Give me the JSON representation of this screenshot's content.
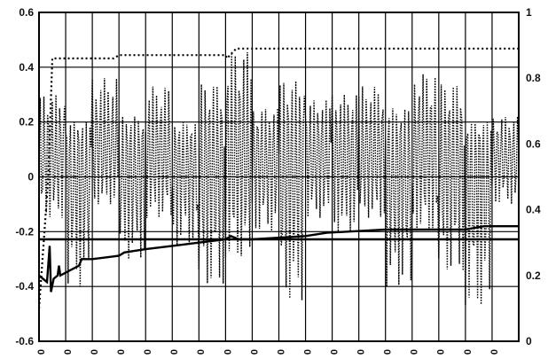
{
  "chart_data": {
    "type": "line",
    "title": "",
    "xlabel": "",
    "ylabel": "",
    "y2label": "",
    "grid": "on",
    "legend": "none",
    "ylim": [
      -0.6,
      0.6
    ],
    "y2lim": [
      0,
      1
    ],
    "y_ticks": [
      "0.6",
      "0.4",
      "0.2",
      "0",
      "-0.2",
      "-0.4",
      "-0.6"
    ],
    "y2_ticks": [
      "1",
      "0.8",
      "0.6",
      "0.4",
      "0.2",
      "0"
    ],
    "x_tick_labels": [
      "0",
      "0",
      "0",
      "0",
      "0",
      "0",
      "0",
      "0",
      "0",
      "0",
      "0",
      "0",
      "0",
      "0",
      "0",
      "0",
      "0",
      "0"
    ],
    "series": [
      {
        "axis": "left",
        "style": "dotted",
        "oscillation_center": 0.08,
        "cycles": [
          {
            "min": -0.15,
            "max": 0.3
          },
          {
            "min": -0.4,
            "max": 0.2
          },
          {
            "min": -0.1,
            "max": 0.36
          },
          {
            "min": -0.3,
            "max": 0.22
          },
          {
            "min": -0.15,
            "max": 0.33
          },
          {
            "min": -0.25,
            "max": 0.2
          },
          {
            "min": -0.4,
            "max": 0.34
          },
          {
            "min": -0.3,
            "max": 0.46
          },
          {
            "min": -0.2,
            "max": 0.25
          },
          {
            "min": -0.45,
            "max": 0.35
          },
          {
            "min": -0.15,
            "max": 0.28
          },
          {
            "min": -0.2,
            "max": 0.3
          },
          {
            "min": -0.15,
            "max": 0.33
          },
          {
            "min": -0.4,
            "max": 0.25
          },
          {
            "min": -0.2,
            "max": 0.38
          },
          {
            "min": -0.35,
            "max": 0.34
          },
          {
            "min": -0.48,
            "max": 0.2
          },
          {
            "min": -0.1,
            "max": 0.22
          }
        ]
      },
      {
        "axis": "right",
        "style": "dashed-dotted",
        "x": [
          0,
          0.35,
          0.5,
          1.0,
          2.8,
          3.0,
          7.0,
          7.05,
          7.4,
          7.5,
          18.0
        ],
        "y": [
          0.1,
          0.5,
          0.86,
          0.86,
          0.86,
          0.87,
          0.87,
          0.86,
          0.89,
          0.89,
          0.89
        ]
      },
      {
        "axis": "right",
        "style": "solid",
        "x": [
          0,
          0.3,
          0.4,
          0.45,
          0.55,
          0.7,
          0.75,
          0.8,
          1.5,
          1.6,
          2.0,
          3.0,
          3.2,
          4.0,
          5.0,
          6.0,
          7.0,
          7.2,
          7.5,
          8.0,
          10.0,
          10.8,
          13.0,
          14.0,
          15.0,
          16.0,
          16.7,
          17.0,
          18.0
        ],
        "y": [
          0.2,
          0.18,
          0.29,
          0.15,
          0.19,
          0.2,
          0.23,
          0.2,
          0.23,
          0.25,
          0.25,
          0.26,
          0.27,
          0.28,
          0.29,
          0.3,
          0.31,
          0.32,
          0.31,
          0.31,
          0.32,
          0.33,
          0.34,
          0.34,
          0.34,
          0.34,
          0.35,
          0.35,
          0.35
        ]
      },
      {
        "axis": "right",
        "style": "solid",
        "x": [
          0,
          18.0
        ],
        "y": [
          0.31,
          0.31
        ]
      }
    ]
  }
}
